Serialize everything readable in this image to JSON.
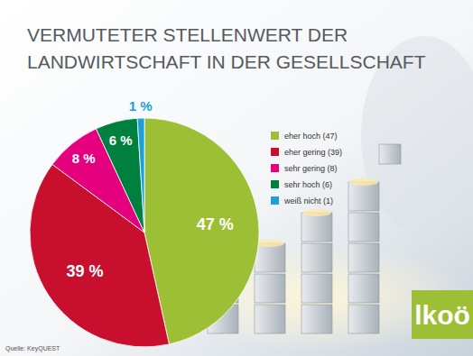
{
  "chart_data": {
    "type": "pie",
    "title": "VERMUTETER STELLENWERT DER LANDWIRTSCHAFT IN DER GESELLSCHAFT",
    "categories": [
      "eher hoch (47)",
      "eher gering (39)",
      "sehr gering (8)",
      "sehr hoch (6)",
      "weiß nicht (1)"
    ],
    "values": [
      47,
      39,
      8,
      6,
      1
    ],
    "value_labels": [
      "47 %",
      "39 %",
      "8 %",
      "6 %",
      "1 %"
    ],
    "colors": [
      "#9cbf35",
      "#c8102e",
      "#e5007d",
      "#00803e",
      "#1ba1d6"
    ],
    "data_labels": true,
    "legend": "right",
    "source": "Quelle: KeyQUEST",
    "logo": "lkoö"
  }
}
